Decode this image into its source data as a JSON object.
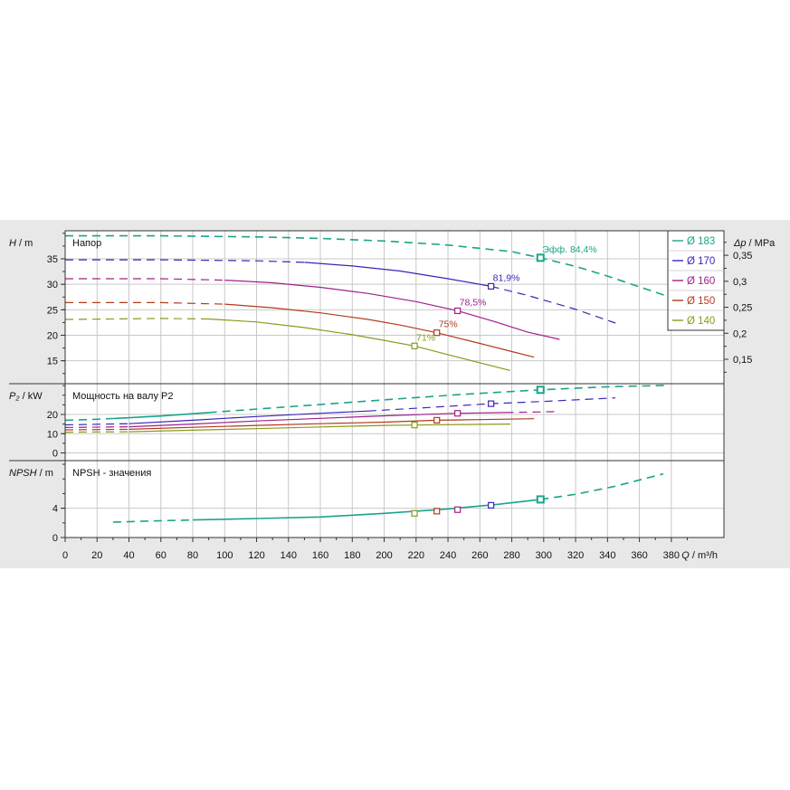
{
  "chart_data": {
    "type": "line",
    "x": {
      "label_sym": "Q",
      "label_unit": " / m³/h",
      "ticks": [
        0,
        20,
        40,
        60,
        80,
        100,
        120,
        140,
        160,
        180,
        200,
        220,
        240,
        260,
        280,
        300,
        320,
        340,
        360,
        380
      ],
      "range": [
        0,
        413
      ]
    },
    "legend": {
      "placement": "top-right",
      "entries": [
        {
          "label": "Ø 183",
          "color": "#1aa48a"
        },
        {
          "label": "Ø 170",
          "color": "#3a26b8"
        },
        {
          "label": "Ø 160",
          "color": "#a0208a"
        },
        {
          "label": "Ø 150",
          "color": "#b23a1c"
        },
        {
          "label": "Ø 140",
          "color": "#8a9a1a"
        }
      ]
    },
    "panels": [
      {
        "id": "head",
        "title": "Напор",
        "axis_sym": "H",
        "axis_unit": " / m",
        "ticks": [
          15,
          20,
          25,
          30,
          35
        ],
        "range": [
          10.5,
          40.5
        ],
        "right_axis": {
          "sym": "Δp",
          "unit": " / MPa",
          "ticks": [
            0.15,
            0.2,
            0.25,
            0.3,
            0.35
          ],
          "ticklabels": [
            "0,15",
            "0,2",
            "0,25",
            "0,3",
            "0,35"
          ]
        },
        "series": [
          {
            "legend": 0,
            "dashed": [
              [
                0,
                39.5
              ],
              [
                60,
                39.5
              ],
              [
                120,
                39.3
              ],
              [
                160,
                39.0
              ],
              [
                200,
                38.5
              ],
              [
                240,
                37.7
              ],
              [
                280,
                36.4
              ],
              [
                298,
                35.2
              ],
              [
                320,
                33.5
              ],
              [
                340,
                31.6
              ],
              [
                360,
                29.5
              ],
              [
                380,
                27.4
              ],
              [
                400,
                25.0
              ]
            ],
            "solid": []
          },
          {
            "legend": 1,
            "dashed": [
              [
                0,
                34.8
              ],
              [
                60,
                34.8
              ],
              [
                120,
                34.6
              ],
              [
                150,
                34.3
              ]
            ],
            "solid": [
              [
                150,
                34.3
              ],
              [
                180,
                33.6
              ],
              [
                210,
                32.6
              ],
              [
                240,
                31.1
              ],
              [
                267,
                29.6
              ]
            ],
            "dashed2": [
              [
                267,
                29.6
              ],
              [
                290,
                27.8
              ],
              [
                320,
                25.1
              ],
              [
                345,
                22.4
              ]
            ]
          },
          {
            "legend": 2,
            "dashed": [
              [
                0,
                31.1
              ],
              [
                60,
                31.1
              ],
              [
                100,
                30.8
              ]
            ],
            "solid": [
              [
                100,
                30.8
              ],
              [
                130,
                30.3
              ],
              [
                160,
                29.4
              ],
              [
                190,
                28.2
              ],
              [
                220,
                26.6
              ],
              [
                246,
                24.8
              ],
              [
                270,
                22.6
              ],
              [
                290,
                20.6
              ],
              [
                310,
                19.2
              ]
            ]
          },
          {
            "legend": 3,
            "dashed": [
              [
                0,
                26.4
              ],
              [
                60,
                26.4
              ],
              [
                100,
                26.1
              ]
            ],
            "solid": [
              [
                100,
                26.1
              ],
              [
                130,
                25.4
              ],
              [
                160,
                24.4
              ],
              [
                190,
                23.1
              ],
              [
                210,
                22.0
              ],
              [
                233,
                20.5
              ],
              [
                260,
                18.4
              ],
              [
                280,
                16.8
              ],
              [
                294,
                15.7
              ]
            ]
          },
          {
            "legend": 4,
            "dashed": [
              [
                0,
                23.1
              ],
              [
                60,
                23.3
              ],
              [
                90,
                23.2
              ]
            ],
            "solid": [
              [
                90,
                23.2
              ],
              [
                120,
                22.6
              ],
              [
                150,
                21.5
              ],
              [
                180,
                20.1
              ],
              [
                200,
                19.0
              ],
              [
                219,
                17.9
              ],
              [
                240,
                16.2
              ],
              [
                265,
                14.2
              ],
              [
                279,
                13.1
              ]
            ]
          }
        ],
        "markers": [
          {
            "legend": 0,
            "x": 298,
            "y": 35.2,
            "label": "Эфф.  84,4%",
            "big": true
          },
          {
            "legend": 1,
            "x": 267,
            "y": 29.6,
            "label": "81,9%"
          },
          {
            "legend": 2,
            "x": 246,
            "y": 24.8,
            "label": "78,5%"
          },
          {
            "legend": 3,
            "x": 233,
            "y": 20.5,
            "label": "75%"
          },
          {
            "legend": 4,
            "x": 219,
            "y": 17.9,
            "label": "71%"
          }
        ]
      },
      {
        "id": "power",
        "title": "Мощность на валу P2",
        "axis_sym": "P₂",
        "axis_unit": " / kW",
        "ticks": [
          0,
          10,
          20
        ],
        "range": [
          -4,
          36
        ],
        "series": [
          {
            "legend": 0,
            "dashed": [
              [
                0,
                17.0
              ],
              [
                20,
                17.5
              ],
              [
                30,
                17.9
              ]
            ],
            "solid": [
              [
                30,
                17.9
              ],
              [
                60,
                19.2
              ],
              [
                90,
                21.0
              ]
            ],
            "dashed2": [
              [
                90,
                21.0
              ],
              [
                130,
                23.4
              ],
              [
                170,
                25.8
              ],
              [
                210,
                28.2
              ],
              [
                250,
                30.5
              ],
              [
                298,
                32.8
              ],
              [
                340,
                34.4
              ],
              [
                376,
                35.1
              ]
            ]
          },
          {
            "legend": 1,
            "dashed": [
              [
                0,
                14.6
              ],
              [
                40,
                15.2
              ]
            ],
            "solid": [
              [
                40,
                15.2
              ],
              [
                80,
                17.0
              ],
              [
                120,
                18.9
              ],
              [
                160,
                20.6
              ],
              [
                190,
                21.8
              ]
            ],
            "dashed2": [
              [
                190,
                21.8
              ],
              [
                230,
                23.7
              ],
              [
                267,
                25.6
              ],
              [
                300,
                26.8
              ],
              [
                345,
                28.6
              ]
            ]
          },
          {
            "legend": 2,
            "dashed": [
              [
                0,
                13.2
              ],
              [
                40,
                13.6
              ]
            ],
            "solid": [
              [
                40,
                13.6
              ],
              [
                80,
                15.0
              ],
              [
                120,
                16.6
              ],
              [
                160,
                18.0
              ],
              [
                200,
                19.3
              ],
              [
                246,
                20.6
              ],
              [
                276,
                21.0
              ]
            ],
            "dashed2": [
              [
                276,
                21.0
              ],
              [
                310,
                21.5
              ]
            ]
          },
          {
            "legend": 3,
            "dashed": [
              [
                0,
                12.0
              ],
              [
                40,
                12.3
              ]
            ],
            "solid": [
              [
                40,
                12.3
              ],
              [
                80,
                13.3
              ],
              [
                120,
                14.3
              ],
              [
                160,
                15.2
              ],
              [
                200,
                16.0
              ],
              [
                233,
                17.0
              ],
              [
                260,
                17.3
              ],
              [
                294,
                17.8
              ]
            ]
          },
          {
            "legend": 4,
            "dashed": [
              [
                0,
                10.8
              ],
              [
                40,
                11.0
              ]
            ],
            "solid": [
              [
                40,
                11.0
              ],
              [
                80,
                11.8
              ],
              [
                120,
                12.6
              ],
              [
                160,
                13.5
              ],
              [
                200,
                14.3
              ],
              [
                219,
                14.5
              ],
              [
                250,
                14.8
              ],
              [
                279,
                15.0
              ]
            ]
          }
        ],
        "markers": [
          {
            "legend": 0,
            "x": 298,
            "y": 32.8,
            "big": true
          },
          {
            "legend": 1,
            "x": 267,
            "y": 25.6
          },
          {
            "legend": 2,
            "x": 246,
            "y": 20.6
          },
          {
            "legend": 3,
            "x": 233,
            "y": 17.0
          },
          {
            "legend": 4,
            "x": 219,
            "y": 14.5
          }
        ]
      },
      {
        "id": "npsh",
        "title": "NPSH - значения",
        "axis_sym": "NPSH",
        "axis_unit": " / m",
        "ticks": [
          0,
          4
        ],
        "range": [
          0,
          10.5
        ],
        "series": [
          {
            "legend": 0,
            "dashed": [
              [
                30,
                2.1
              ],
              [
                60,
                2.3
              ],
              [
                80,
                2.4
              ]
            ],
            "solid": [
              [
                80,
                2.4
              ],
              [
                120,
                2.6
              ],
              [
                160,
                2.8
              ],
              [
                200,
                3.3
              ],
              [
                240,
                3.9
              ],
              [
                270,
                4.5
              ],
              [
                298,
                5.2
              ]
            ],
            "dashed2": [
              [
                298,
                5.2
              ],
              [
                320,
                5.9
              ],
              [
                345,
                7.0
              ],
              [
                375,
                8.7
              ]
            ]
          }
        ],
        "markers": [
          {
            "legend": 0,
            "x": 298,
            "y": 5.2,
            "big": true
          },
          {
            "legend": 1,
            "x": 267,
            "y": 4.4
          },
          {
            "legend": 2,
            "x": 246,
            "y": 3.8
          },
          {
            "legend": 3,
            "x": 233,
            "y": 3.6
          },
          {
            "legend": 4,
            "x": 219,
            "y": 3.3
          }
        ]
      }
    ]
  }
}
